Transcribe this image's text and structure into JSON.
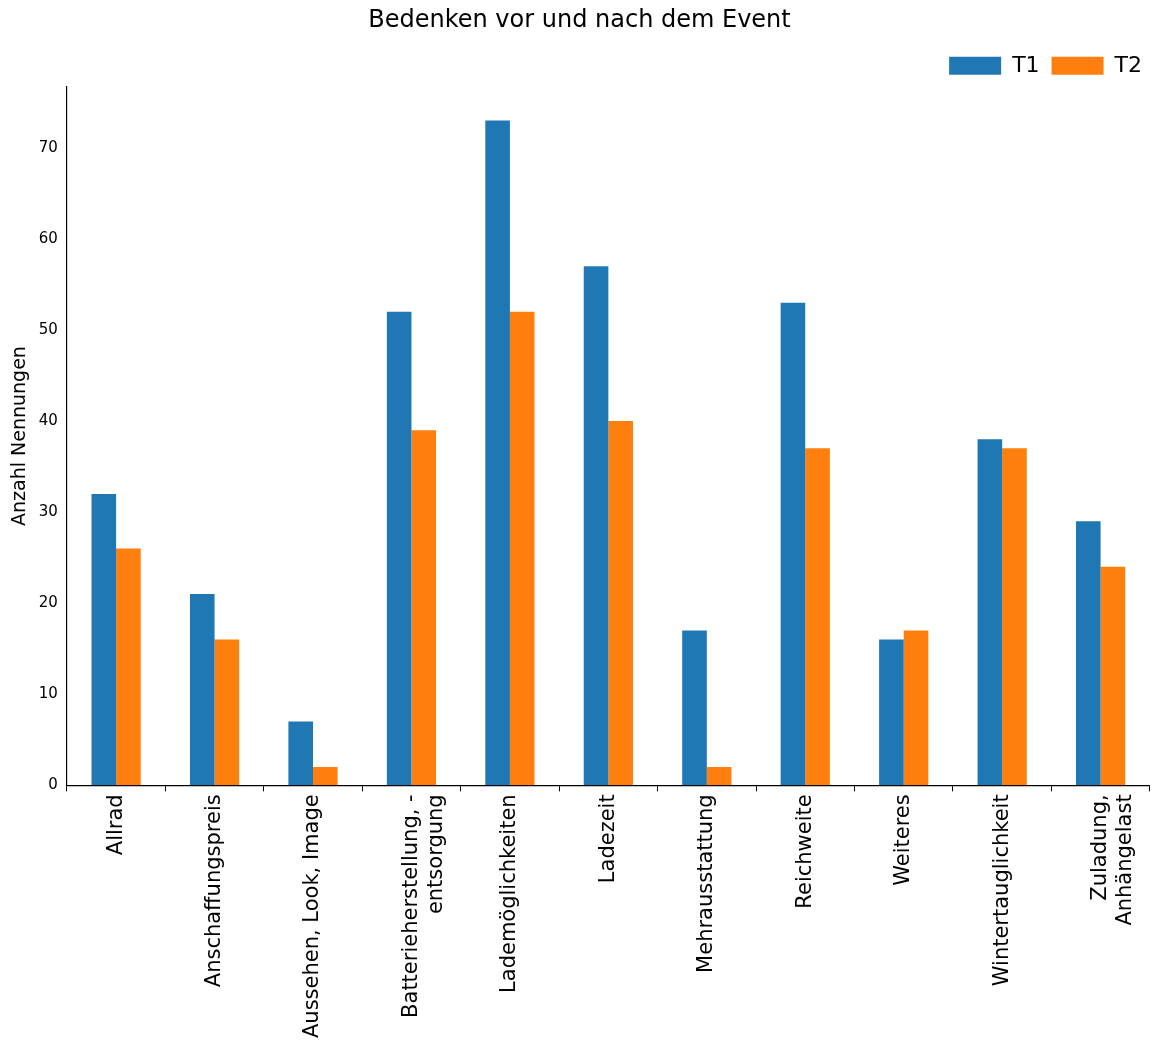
{
  "chart_data": {
    "type": "bar",
    "title": "Bedenken vor und nach dem Event",
    "ylabel": "Anzahl Nennungen",
    "categories": [
      "Allrad",
      "Anschaffungspreis",
      "Aussehen, Look, Image",
      "Batterieherstellung, -\nentsorgung",
      "Lademöglichkeiten",
      "Ladezeit",
      "Mehrausstattung",
      "Reichweite",
      "Weiteres",
      "Wintertauglichkeit",
      "Zuladung,\nAnhängelast"
    ],
    "series": [
      {
        "name": "T1",
        "color": "#1f77b4",
        "values": [
          32,
          21,
          7,
          52,
          73,
          57,
          17,
          53,
          16,
          38,
          29
        ]
      },
      {
        "name": "T2",
        "color": "#ff7f0e",
        "values": [
          26,
          16,
          2,
          39,
          52,
          40,
          2,
          37,
          17,
          37,
          24
        ]
      }
    ],
    "ylim": [
      0,
      76.7
    ],
    "yticks": [
      0,
      10,
      20,
      30,
      40,
      50,
      60,
      70
    ],
    "grid": false,
    "legend": "top right"
  }
}
